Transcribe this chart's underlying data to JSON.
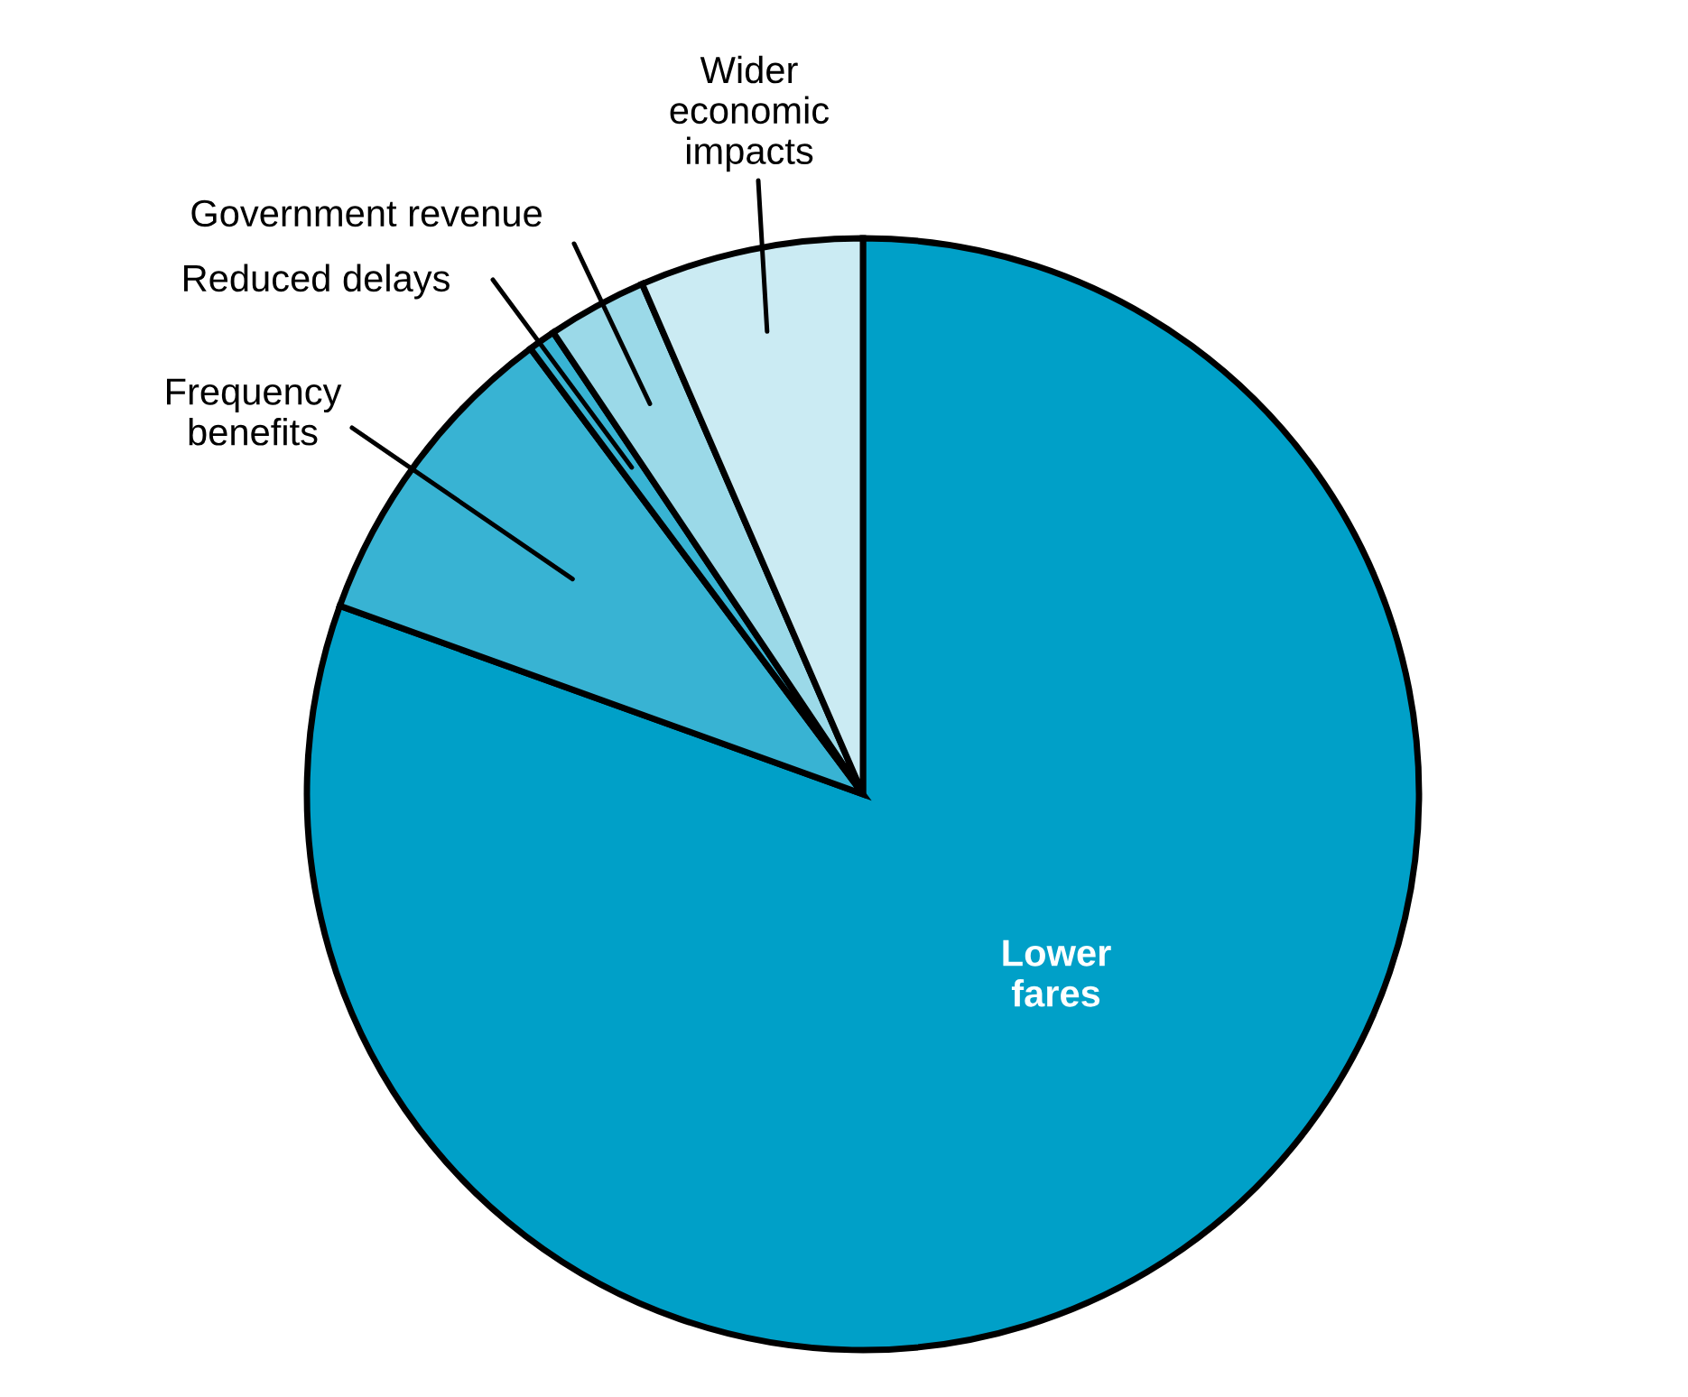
{
  "chart_data": {
    "type": "pie",
    "categories": [
      "Lower\nfares",
      "Frequency\nbenefits",
      "Reduced delays",
      "Government revenue",
      "Wider\neconomic\nimpacts"
    ],
    "values": [
      80.5,
      9.3,
      0.8,
      2.9,
      6.5
    ],
    "colors": [
      "#00a0c8",
      "#38b3d3",
      "#38b3d3",
      "#9bd9e8",
      "#cbebf3"
    ],
    "legend": false
  }
}
